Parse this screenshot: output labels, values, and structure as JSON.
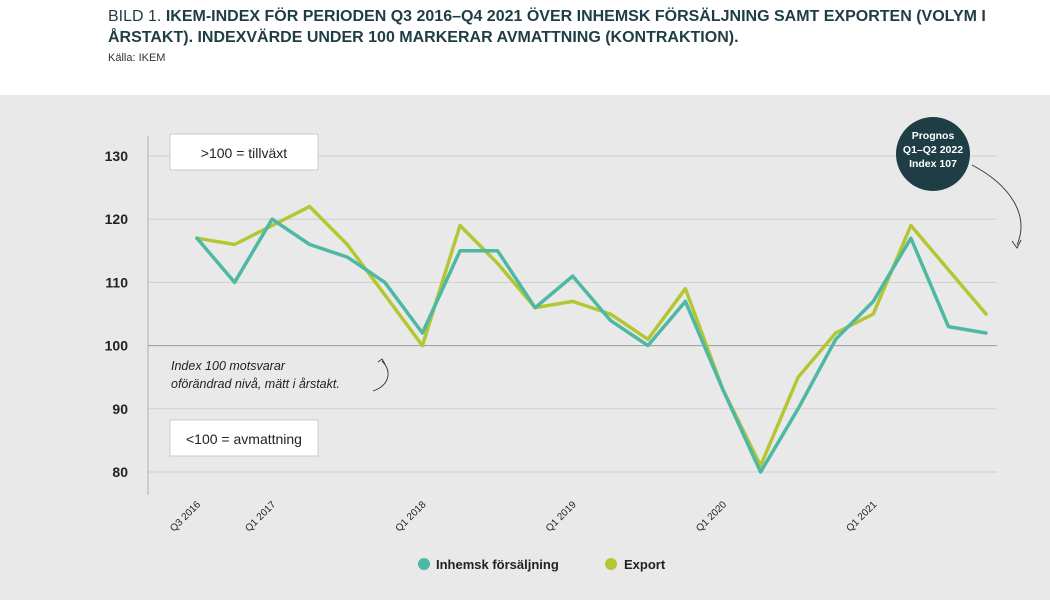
{
  "title": {
    "prefix": "BILD 1. ",
    "text": "IKEM-INDEX FÖR PERIODEN Q3 2016–Q4 2021 ÖVER INHEMSK FÖRSÄLJNING SAMT EXPORTEN (VOLYM I ÅRSTAKT). INDEXVÄRDE UNDER 100 MARKERAR AVMATTNING (KONTRAKTION)."
  },
  "source": "Källa: IKEM",
  "annotations": {
    "growth_box": ">100 = tillväxt",
    "contraction_box": "<100 = avmattning",
    "index_note_line1": "Index 100 motsvarar",
    "index_note_line2": "oförändrad nivå, mätt i årstakt.",
    "forecast_line1": "Prognos",
    "forecast_line2": "Q1–Q2 2022",
    "forecast_line3": "Index 107"
  },
  "colors": {
    "inhemsk": "#4db8a3",
    "export": "#b5c634",
    "forecast_circle": "#1f3d44",
    "grid": "#cfcfcf",
    "background": "#e9e9e9"
  },
  "chart_data": {
    "type": "line",
    "x": [
      "Q3 2016",
      "Q4 2016",
      "Q1 2017",
      "Q2 2017",
      "Q3 2017",
      "Q4 2017",
      "Q1 2018",
      "Q2 2018",
      "Q3 2018",
      "Q4 2018",
      "Q1 2019",
      "Q2 2019",
      "Q3 2019",
      "Q4 2019",
      "Q1 2020",
      "Q2 2020",
      "Q3 2020",
      "Q4 2020",
      "Q1 2021",
      "Q2 2021",
      "Q3 2021",
      "Q4 2021"
    ],
    "tick_labels": [
      {
        "index": 0,
        "label": "Q3 2016"
      },
      {
        "index": 2,
        "label": "Q1 2017"
      },
      {
        "index": 6,
        "label": "Q1 2018"
      },
      {
        "index": 10,
        "label": "Q1 2019"
      },
      {
        "index": 14,
        "label": "Q1 2020"
      },
      {
        "index": 18,
        "label": "Q1 2021"
      }
    ],
    "series": [
      {
        "name": "Inhemsk försäljning",
        "color": "#4db8a3",
        "values": [
          117,
          110,
          120,
          116,
          114,
          110,
          102,
          115,
          115,
          106,
          111,
          104,
          100,
          107,
          93,
          80,
          90,
          101,
          107,
          117,
          103,
          102
        ]
      },
      {
        "name": "Export",
        "color": "#b5c634",
        "values": [
          117,
          116,
          119,
          122,
          116,
          108,
          100,
          119,
          113,
          106,
          107,
          105,
          101,
          109,
          93,
          81,
          95,
          102,
          105,
          119,
          112,
          105
        ]
      }
    ],
    "ylim": [
      80,
      130
    ],
    "yticks": [
      80,
      90,
      100,
      110,
      120,
      130
    ],
    "reference_line": 100,
    "grid": true,
    "legend": "bottom-center"
  }
}
